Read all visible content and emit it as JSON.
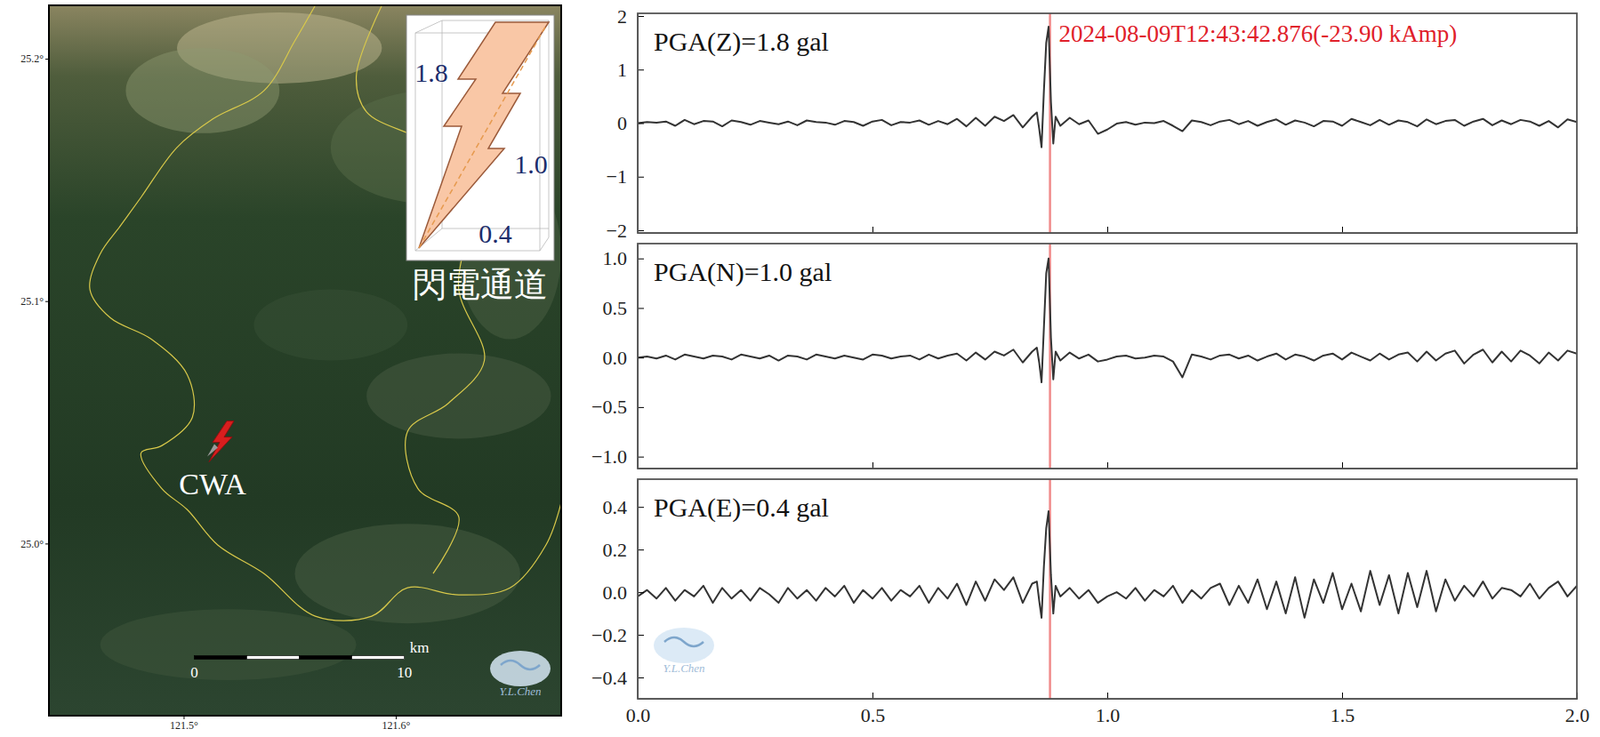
{
  "chart_data": [
    {
      "type": "line",
      "annotation": "PGA(Z)=1.8 gal",
      "event": {
        "x": 0.878,
        "label": "2024-08-09T12:43:42.876(-23.90 kAmp)"
      },
      "x": [
        0,
        0.02,
        0.04,
        0.06,
        0.08,
        0.1,
        0.12,
        0.14,
        0.16,
        0.18,
        0.2,
        0.22,
        0.24,
        0.26,
        0.28,
        0.3,
        0.32,
        0.34,
        0.36,
        0.38,
        0.4,
        0.42,
        0.44,
        0.46,
        0.48,
        0.5,
        0.52,
        0.54,
        0.56,
        0.58,
        0.6,
        0.62,
        0.64,
        0.66,
        0.68,
        0.7,
        0.72,
        0.74,
        0.76,
        0.78,
        0.8,
        0.82,
        0.84,
        0.85,
        0.855,
        0.86,
        0.865,
        0.87,
        0.875,
        0.88,
        0.885,
        0.89,
        0.9,
        0.92,
        0.94,
        0.96,
        0.98,
        1.0,
        1.02,
        1.04,
        1.06,
        1.08,
        1.1,
        1.12,
        1.14,
        1.16,
        1.18,
        1.2,
        1.22,
        1.24,
        1.26,
        1.28,
        1.3,
        1.32,
        1.34,
        1.36,
        1.38,
        1.4,
        1.42,
        1.44,
        1.46,
        1.48,
        1.5,
        1.52,
        1.54,
        1.56,
        1.58,
        1.6,
        1.62,
        1.64,
        1.66,
        1.68,
        1.7,
        1.72,
        1.74,
        1.76,
        1.78,
        1.8,
        1.82,
        1.84,
        1.86,
        1.88,
        1.9,
        1.92,
        1.94,
        1.96,
        1.98,
        2.0
      ],
      "values": [
        0,
        0.02,
        0.01,
        0.03,
        -0.05,
        0.06,
        -0.02,
        0.04,
        0.03,
        -0.06,
        0.05,
        0.02,
        -0.03,
        0.04,
        0.01,
        -0.02,
        0.03,
        -0.04,
        0.05,
        0.02,
        0.01,
        -0.03,
        0.04,
        0.02,
        -0.05,
        0.03,
        0.06,
        -0.04,
        0.02,
        0.01,
        0.05,
        -0.03,
        0.04,
        -0.02,
        0.08,
        -0.06,
        0.1,
        -0.05,
        0.12,
        0.04,
        0.15,
        -0.08,
        0.12,
        0.2,
        -0.1,
        -0.45,
        0.6,
        1.5,
        1.8,
        0.4,
        -0.38,
        0.12,
        -0.05,
        0.1,
        -0.02,
        0.05,
        -0.2,
        -0.12,
        -0.01,
        0.02,
        -0.03,
        0.01,
        0.0,
        0.04,
        -0.05,
        -0.15,
        0.05,
        0.02,
        -0.04,
        0.03,
        0.06,
        -0.02,
        0.04,
        -0.05,
        0.02,
        0.07,
        -0.03,
        0.05,
        0.01,
        -0.06,
        0.04,
        0.03,
        -0.05,
        0.08,
        0.02,
        -0.04,
        0.06,
        -0.03,
        0.05,
        0.02,
        -0.06,
        0.07,
        -0.02,
        0.04,
        0.06,
        -0.05,
        0.03,
        0.08,
        -0.04,
        0.05,
        -0.02,
        0.06,
        0.03,
        -0.05,
        0.04,
        -0.08,
        0.07,
        0.02
      ],
      "color": "#333333",
      "xlim": [
        0,
        2
      ],
      "xticks": [
        {
          "value": 0,
          "label": "0.0"
        },
        {
          "value": 0.5,
          "label": "0.5"
        },
        {
          "value": 1,
          "label": "1.0"
        },
        {
          "value": 1.5,
          "label": "1.5"
        },
        {
          "value": 2,
          "label": "2.0"
        }
      ],
      "ylim": [
        -2.05,
        2.05
      ],
      "yticks": [
        {
          "value": -2,
          "label": "−2"
        },
        {
          "value": -1,
          "label": "−1"
        },
        0,
        1,
        2
      ],
      "tick_labels": "y"
    },
    {
      "type": "line",
      "annotation": "PGA(N)=1.0 gal",
      "event": {
        "x": 0.878
      },
      "x": [
        0,
        0.02,
        0.04,
        0.06,
        0.08,
        0.1,
        0.12,
        0.14,
        0.16,
        0.18,
        0.2,
        0.22,
        0.24,
        0.26,
        0.28,
        0.3,
        0.32,
        0.34,
        0.36,
        0.38,
        0.4,
        0.42,
        0.44,
        0.46,
        0.48,
        0.5,
        0.52,
        0.54,
        0.56,
        0.58,
        0.6,
        0.62,
        0.64,
        0.66,
        0.68,
        0.7,
        0.72,
        0.74,
        0.76,
        0.78,
        0.8,
        0.82,
        0.84,
        0.85,
        0.855,
        0.86,
        0.865,
        0.87,
        0.875,
        0.88,
        0.885,
        0.89,
        0.9,
        0.92,
        0.94,
        0.96,
        0.98,
        1.0,
        1.02,
        1.04,
        1.06,
        1.08,
        1.1,
        1.12,
        1.14,
        1.16,
        1.18,
        1.2,
        1.22,
        1.24,
        1.26,
        1.28,
        1.3,
        1.32,
        1.34,
        1.36,
        1.38,
        1.4,
        1.42,
        1.44,
        1.46,
        1.48,
        1.5,
        1.52,
        1.54,
        1.56,
        1.58,
        1.6,
        1.62,
        1.64,
        1.66,
        1.68,
        1.7,
        1.72,
        1.74,
        1.76,
        1.78,
        1.8,
        1.82,
        1.84,
        1.86,
        1.88,
        1.9,
        1.92,
        1.94,
        1.96,
        1.98,
        2.0
      ],
      "values": [
        0,
        0.01,
        -0.01,
        0.02,
        -0.02,
        0.03,
        0.01,
        -0.01,
        0.02,
        0.01,
        -0.02,
        0.03,
        0.01,
        -0.01,
        0.02,
        -0.03,
        0.02,
        0.01,
        -0.02,
        0.03,
        0.01,
        -0.01,
        0.02,
        0.0,
        -0.02,
        0.03,
        0.02,
        -0.01,
        0.01,
        0.02,
        -0.02,
        0.03,
        -0.01,
        0.02,
        0.04,
        -0.03,
        0.05,
        -0.02,
        0.06,
        0.02,
        0.08,
        -0.05,
        0.06,
        0.1,
        -0.05,
        -0.25,
        0.3,
        0.85,
        1.0,
        0.2,
        -0.22,
        0.06,
        -0.03,
        0.05,
        -0.01,
        0.03,
        -0.04,
        -0.02,
        0.01,
        0.02,
        -0.01,
        0.0,
        0.02,
        0.01,
        -0.04,
        -0.2,
        0.03,
        0.01,
        -0.02,
        0.02,
        0.03,
        -0.01,
        0.02,
        -0.03,
        0.01,
        0.04,
        -0.02,
        0.03,
        0.01,
        -0.03,
        0.02,
        0.04,
        -0.02,
        0.05,
        0.01,
        -0.03,
        0.04,
        -0.02,
        0.03,
        0.05,
        -0.04,
        0.06,
        -0.03,
        0.04,
        0.07,
        -0.06,
        0.03,
        0.08,
        -0.05,
        0.06,
        -0.04,
        0.07,
        0.02,
        -0.06,
        0.05,
        -0.03,
        0.07,
        0.04
      ],
      "color": "#333333",
      "xlim": [
        0,
        2
      ],
      "xticks": [
        {
          "value": 0,
          "label": "0.0"
        },
        {
          "value": 0.5,
          "label": "0.5"
        },
        {
          "value": 1,
          "label": "1.0"
        },
        {
          "value": 1.5,
          "label": "1.5"
        },
        {
          "value": 2,
          "label": "2.0"
        }
      ],
      "ylim": [
        -1.12,
        1.15
      ],
      "yticks": [
        {
          "value": -1,
          "label": "−1.0"
        },
        {
          "value": -0.5,
          "label": "−0.5"
        },
        {
          "value": 0,
          "label": "0.0"
        },
        0.5,
        {
          "value": 1,
          "label": "1.0"
        }
      ],
      "tick_labels": "y"
    },
    {
      "type": "line",
      "annotation": "PGA(E)=0.4 gal",
      "event": {
        "x": 0.878
      },
      "x": [
        0,
        0.02,
        0.04,
        0.06,
        0.08,
        0.1,
        0.12,
        0.14,
        0.16,
        0.18,
        0.2,
        0.22,
        0.24,
        0.26,
        0.28,
        0.3,
        0.32,
        0.34,
        0.36,
        0.38,
        0.4,
        0.42,
        0.44,
        0.46,
        0.48,
        0.5,
        0.52,
        0.54,
        0.56,
        0.58,
        0.6,
        0.62,
        0.64,
        0.66,
        0.68,
        0.7,
        0.72,
        0.74,
        0.76,
        0.78,
        0.8,
        0.82,
        0.84,
        0.85,
        0.855,
        0.86,
        0.865,
        0.87,
        0.875,
        0.88,
        0.885,
        0.89,
        0.9,
        0.92,
        0.94,
        0.96,
        0.98,
        1.0,
        1.02,
        1.04,
        1.06,
        1.08,
        1.1,
        1.12,
        1.14,
        1.16,
        1.18,
        1.2,
        1.22,
        1.24,
        1.26,
        1.28,
        1.3,
        1.32,
        1.34,
        1.36,
        1.38,
        1.4,
        1.42,
        1.44,
        1.46,
        1.48,
        1.5,
        1.52,
        1.54,
        1.56,
        1.58,
        1.6,
        1.62,
        1.64,
        1.66,
        1.68,
        1.7,
        1.72,
        1.74,
        1.76,
        1.78,
        1.8,
        1.82,
        1.84,
        1.86,
        1.88,
        1.9,
        1.92,
        1.94,
        1.96,
        1.98,
        2.0
      ],
      "values": [
        -0.02,
        0.01,
        -0.03,
        0.02,
        -0.04,
        0.01,
        -0.02,
        0.03,
        -0.05,
        0.02,
        -0.03,
        0.01,
        -0.04,
        0.02,
        -0.01,
        -0.05,
        0.02,
        -0.03,
        0.01,
        -0.04,
        0.02,
        -0.02,
        0.03,
        -0.05,
        0.01,
        -0.03,
        0.02,
        -0.04,
        0.01,
        -0.02,
        0.03,
        -0.05,
        0.02,
        -0.03,
        0.04,
        -0.06,
        0.05,
        -0.04,
        0.06,
        0.01,
        0.07,
        -0.05,
        0.04,
        0.05,
        -0.04,
        -0.12,
        0.12,
        0.3,
        0.38,
        0.08,
        -0.1,
        0.03,
        -0.02,
        0.02,
        -0.03,
        0.01,
        -0.05,
        -0.02,
        0.0,
        -0.03,
        0.02,
        -0.04,
        0.01,
        -0.02,
        0.03,
        -0.05,
        0.01,
        -0.03,
        0.02,
        0.04,
        -0.06,
        0.03,
        -0.05,
        0.06,
        -0.08,
        0.05,
        -0.1,
        0.07,
        -0.12,
        0.06,
        -0.05,
        0.09,
        -0.08,
        0.04,
        -0.09,
        0.1,
        -0.06,
        0.08,
        -0.1,
        0.09,
        -0.07,
        0.1,
        -0.09,
        0.06,
        -0.04,
        0.03,
        -0.02,
        0.05,
        -0.03,
        0.02,
        0.01,
        -0.02,
        0.04,
        -0.03,
        0.02,
        0.05,
        -0.02,
        0.03
      ],
      "color": "#333333",
      "xlim": [
        0,
        2
      ],
      "xticks": [
        {
          "value": 0,
          "label": "0.0"
        },
        {
          "value": 0.5,
          "label": "0.5"
        },
        {
          "value": 1,
          "label": "1.0"
        },
        {
          "value": 1.5,
          "label": "1.5"
        },
        {
          "value": 2,
          "label": "2.0"
        }
      ],
      "ylim": [
        -0.5,
        0.53
      ],
      "yticks": [
        {
          "value": -0.4,
          "label": "−0.4"
        },
        {
          "value": -0.2,
          "label": "−0.2"
        },
        {
          "value": 0,
          "label": "0.0"
        },
        0.2,
        0.4
      ]
    }
  ],
  "map": {
    "type": "map",
    "xlim": [
      121.4365,
      121.678
    ],
    "ylim": [
      24.929,
      25.222
    ],
    "xticks": [
      {
        "value": 121.5,
        "label": "121.5°"
      },
      {
        "value": 121.6,
        "label": "121.6°"
      }
    ],
    "yticks": [
      {
        "value": 25.0,
        "label": "25.0°"
      },
      {
        "value": 25.1,
        "label": "25.1°"
      },
      {
        "value": 25.2,
        "label": "25.2°"
      }
    ],
    "station": {
      "label": "CWA",
      "lon": 121.517,
      "lat": 25.041
    },
    "scale_bar": {
      "ticks": [
        0,
        10
      ],
      "unit": "km",
      "lon": 121.505,
      "lat": 24.953
    }
  },
  "inset": {
    "title": "閃電通道",
    "labels": [
      "1.8",
      "1.0",
      "0.4"
    ]
  },
  "credit": "Y.L.Chen"
}
